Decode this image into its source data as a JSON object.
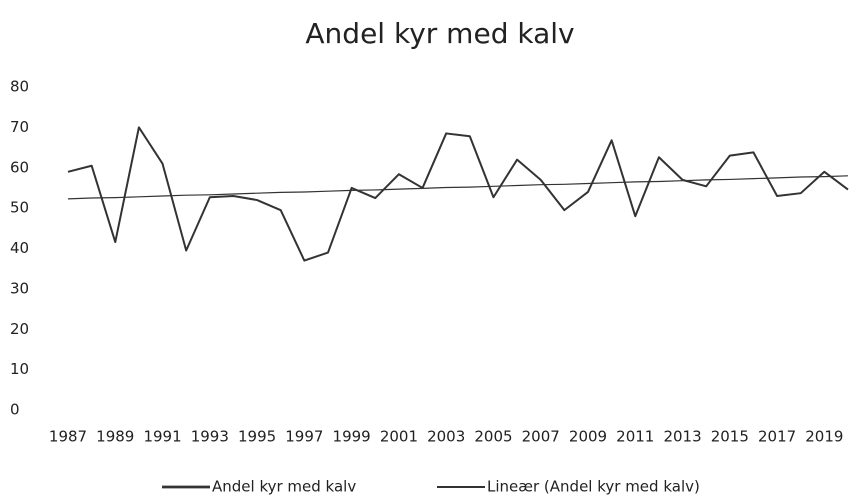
{
  "chart_data": {
    "type": "line",
    "title": "Andel kyr med kalv",
    "categories": [
      "1987",
      null,
      "1989",
      null,
      "1991",
      null,
      "1993",
      null,
      "1995",
      null,
      "1997",
      null,
      "1999",
      null,
      "2001",
      null,
      "2003",
      null,
      "2005",
      null,
      "2007",
      null,
      "2009",
      null,
      "2011",
      null,
      "2013",
      null,
      "2015",
      null,
      "2017",
      null,
      "2019",
      null
    ],
    "series": [
      {
        "name": "Andel kyr med kalv",
        "color": "#333333",
        "line_width": 2,
        "values": [
          59,
          60.5,
          41.6,
          70,
          61,
          39.5,
          52.7,
          53,
          52,
          49.5,
          37,
          39,
          55,
          52.5,
          58.4,
          55,
          68.5,
          67.8,
          52.7,
          62,
          57,
          49.5,
          54,
          66.8,
          48,
          62.6,
          57,
          55.4,
          63,
          63.8,
          53,
          53.7,
          59,
          54.6
        ]
      },
      {
        "name": "Lineær (Andel kyr med kalv)",
        "color": "#333333",
        "line_width": 1.2,
        "values": [
          52.3,
          52.5,
          52.6,
          52.8,
          53.0,
          53.2,
          53.3,
          53.5,
          53.7,
          53.9,
          54.0,
          54.2,
          54.4,
          54.5,
          54.7,
          54.9,
          55.1,
          55.2,
          55.4,
          55.6,
          55.8,
          55.9,
          56.1,
          56.3,
          56.5,
          56.6,
          56.8,
          57.0,
          57.1,
          57.3,
          57.5,
          57.7,
          57.8,
          58.0
        ]
      }
    ],
    "ylim": [
      0,
      80
    ],
    "yticks": [
      0,
      10,
      20,
      30,
      40,
      50,
      60,
      70,
      80
    ],
    "grid": false,
    "legend": "bottom"
  }
}
